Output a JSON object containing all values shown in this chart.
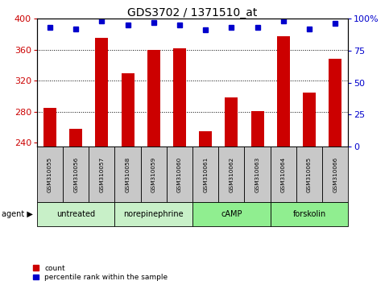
{
  "title": "GDS3702 / 1371510_at",
  "samples": [
    "GSM310055",
    "GSM310056",
    "GSM310057",
    "GSM310058",
    "GSM310059",
    "GSM310060",
    "GSM310061",
    "GSM310062",
    "GSM310063",
    "GSM310064",
    "GSM310065",
    "GSM310066"
  ],
  "counts": [
    285,
    258,
    375,
    330,
    360,
    362,
    255,
    298,
    281,
    377,
    305,
    348
  ],
  "percentiles": [
    93,
    92,
    98,
    95,
    97,
    95,
    91,
    93,
    93,
    98,
    92,
    96
  ],
  "ylim_left": [
    235,
    400
  ],
  "ylim_right": [
    0,
    100
  ],
  "yticks_left": [
    240,
    280,
    320,
    360,
    400
  ],
  "yticks_right": [
    0,
    25,
    50,
    75,
    100
  ],
  "groups": [
    {
      "label": "untreated",
      "start": 0,
      "end": 3
    },
    {
      "label": "norepinephrine",
      "start": 3,
      "end": 6
    },
    {
      "label": "cAMP",
      "start": 6,
      "end": 9
    },
    {
      "label": "forskolin",
      "start": 9,
      "end": 12
    }
  ],
  "bar_color": "#cc0000",
  "dot_color": "#0000cc",
  "grid_color": "#000000",
  "bg_plot": "#ffffff",
  "bg_sample": "#c8c8c8",
  "bg_group_light": "#c8f0c8",
  "bg_group_dark": "#90ee90",
  "left_label_color": "#cc0000",
  "right_label_color": "#0000cc",
  "legend_count_label": "count",
  "legend_pct_label": "percentile rank within the sample",
  "agent_label": "agent",
  "bar_width": 0.5,
  "pct_scale_min": 235,
  "pct_scale_max": 400
}
